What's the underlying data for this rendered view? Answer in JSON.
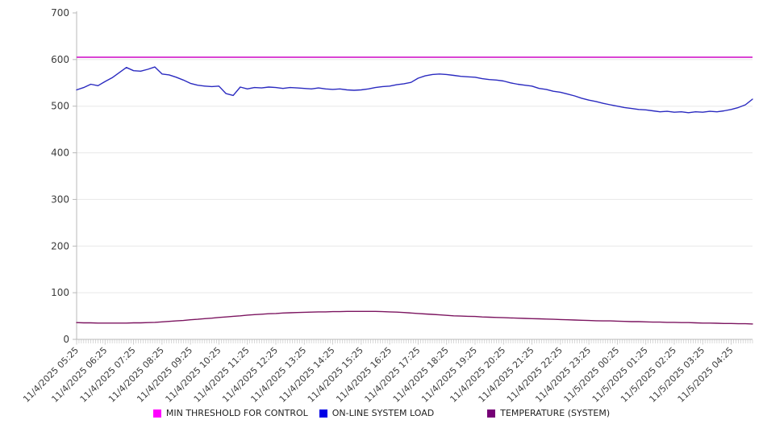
{
  "chart_data": {
    "type": "line",
    "title": "",
    "xlabel": "",
    "ylabel": "",
    "ylim": [
      0,
      700
    ],
    "y_ticks": [
      0,
      100,
      200,
      300,
      400,
      500,
      600,
      700
    ],
    "grid": "horizontal",
    "legend_position": "bottom-center",
    "x_total_minutes": 1425,
    "sample_interval_minutes": 15,
    "x_hour_tick_labels": [
      "11/4/2025 05:25",
      "11/4/2025 06:25",
      "11/4/2025 07:25",
      "11/4/2025 08:25",
      "11/4/2025 09:25",
      "11/4/2025 10:25",
      "11/4/2025 11:25",
      "11/4/2025 12:25",
      "11/4/2025 13:25",
      "11/4/2025 14:25",
      "11/4/2025 15:25",
      "11/4/2025 16:25",
      "11/4/2025 17:25",
      "11/4/2025 18:25",
      "11/4/2025 19:25",
      "11/4/2025 20:25",
      "11/4/2025 21:25",
      "11/4/2025 22:25",
      "11/4/2025 23:25",
      "11/5/2025 00:25",
      "11/5/2025 01:25",
      "11/5/2025 02:25",
      "11/5/2025 03:25",
      "11/5/2025 04:25"
    ],
    "series": [
      {
        "id": "min-threshold-for-control",
        "name": "MIN THRESHOLD FOR CONTROL",
        "kind": "constant",
        "value": 605,
        "color": "#d429ce",
        "legend_color": "#ff00ff"
      },
      {
        "id": "online-system-load",
        "name": "ON-LINE SYSTEM LOAD",
        "kind": "line",
        "color": "#2a2ac0",
        "legend_color": "#0000e6",
        "values": [
          535,
          540,
          547,
          544,
          553,
          561,
          572,
          583,
          576,
          575,
          579,
          584,
          569,
          567,
          562,
          556,
          549,
          545,
          543,
          542,
          543,
          527,
          523,
          541,
          537,
          540,
          539,
          541,
          540,
          538,
          540,
          539,
          538,
          537,
          539,
          537,
          536,
          537,
          535,
          534,
          535,
          537,
          540,
          542,
          543,
          546,
          548,
          551,
          560,
          565,
          568,
          569,
          568,
          566,
          564,
          563,
          562,
          559,
          557,
          556,
          554,
          550,
          547,
          545,
          543,
          538,
          536,
          532,
          530,
          526,
          522,
          517,
          513,
          510,
          506,
          503,
          500,
          497,
          495,
          493,
          492,
          490,
          488,
          489,
          487,
          488,
          486,
          488,
          487,
          489,
          488,
          490,
          493,
          497,
          503,
          515
        ]
      },
      {
        "id": "temperature-system",
        "name": "TEMPERATURE (SYSTEM)",
        "kind": "line",
        "color": "#7c1560",
        "legend_color": "#760076",
        "values": [
          36,
          35.5,
          35.5,
          35,
          35,
          35,
          35,
          35,
          35.5,
          35.5,
          36,
          36.5,
          37.5,
          38.5,
          39.5,
          40.5,
          42,
          43,
          44.5,
          45.5,
          47,
          48,
          49.5,
          50.5,
          52,
          53,
          54,
          55,
          55.5,
          56.5,
          57,
          57.5,
          58,
          58.5,
          59,
          59,
          59.5,
          59.5,
          60,
          60,
          60,
          60,
          60,
          59.5,
          59,
          58.5,
          57.5,
          56.5,
          55.5,
          54.5,
          53.5,
          52.5,
          51.5,
          50.5,
          50,
          49.5,
          49,
          48,
          47.5,
          47,
          46.5,
          46,
          45.5,
          45,
          44.5,
          44,
          43.5,
          43,
          42.5,
          42,
          41.5,
          41,
          40.5,
          40,
          39.5,
          39.5,
          39,
          38.5,
          38,
          38,
          37.5,
          37,
          37,
          36.5,
          36.5,
          36,
          36,
          35.5,
          35,
          35,
          34.5,
          34,
          34,
          33.5,
          33.5,
          33
        ]
      }
    ]
  },
  "style_colors": {
    "axis_line": "#b8b8b8",
    "minor_tick": "#c9c9c9",
    "grid_line": "#e8e8e8",
    "tick_label": "#3c3c3c"
  }
}
